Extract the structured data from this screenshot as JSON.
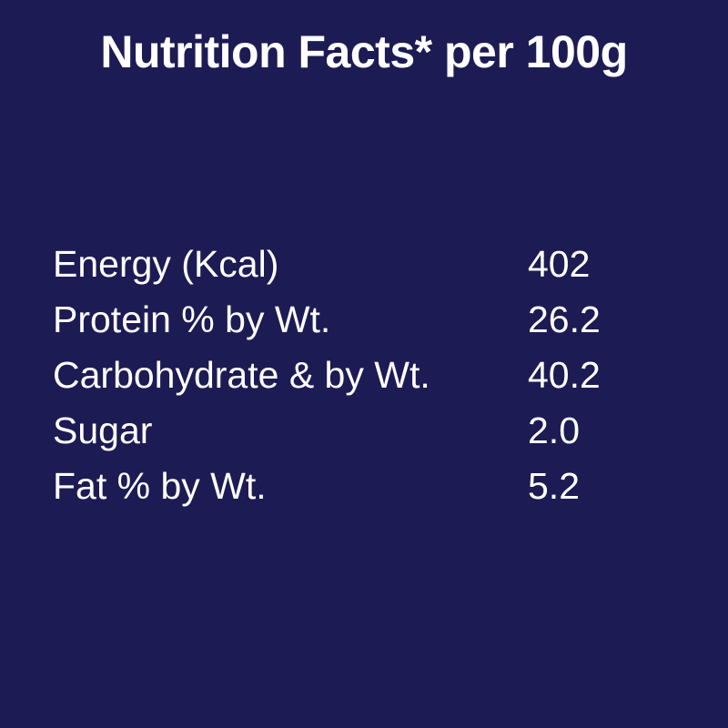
{
  "title": "Nutrition Facts* per 100g",
  "colors": {
    "background": "#1d1b54",
    "text": "#ffffff"
  },
  "rows": [
    {
      "label": "Energy (Kcal)",
      "value": "402"
    },
    {
      "label": "Protein % by Wt.",
      "value": "26.2"
    },
    {
      "label": "Carbohydrate & by Wt.",
      "value": "40.2"
    },
    {
      "label": "Sugar",
      "value": "2.0"
    },
    {
      "label": "Fat % by Wt.",
      "value": "5.2"
    }
  ]
}
